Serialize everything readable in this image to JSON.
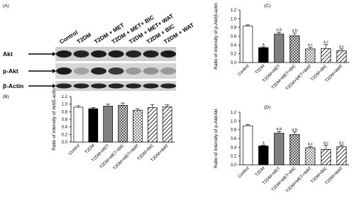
{
  "panel_a": {
    "label": "(A)",
    "lanes": [
      "Control",
      "T2DM",
      "T2DM + MET",
      "T2DM + MET+ BIC",
      "T2DM + MET+ WAT",
      "T2DM + BIC",
      "T2DM + WAT"
    ],
    "rows": [
      "Akt",
      "p-Akt",
      "β-Actin"
    ]
  },
  "chart_data": [
    {
      "type": "bar",
      "label": "(B)",
      "y_label": "Ratio of intensity of Akt/β-actin",
      "categories": [
        "Control",
        "T2DM",
        "T2DM+MET",
        "T2DM+MET+BIC",
        "T2DM+MET+WAT",
        "T2DM+BIC",
        "T2DM+WAT"
      ],
      "values": [
        0.92,
        0.88,
        0.95,
        0.97,
        0.84,
        0.91,
        0.93
      ],
      "errors": [
        0.04,
        0.03,
        0.05,
        0.06,
        0.04,
        0.08,
        0.05
      ],
      "fills": [
        "#ffffff",
        "#000000",
        "#808080",
        "checker",
        "checker-light",
        "hatch",
        "hatch"
      ],
      "ylim": [
        0,
        1.2
      ],
      "yticks": [
        {
          "value": 0,
          "label": "0.0"
        },
        0.2,
        0.4,
        0.6,
        0.8,
        {
          "value": 1,
          "label": "1.0"
        },
        1.2
      ]
    },
    {
      "type": "bar",
      "label": "(C)",
      "y_label": "Ratio of intensity of p-Akt/β-actin",
      "categories": [
        "Control",
        "T2DM",
        "T2DM+MET",
        "T2DM+MET+BIC",
        "T2DM+MET+WAT",
        "T2DM+BIC",
        "T2DM+WAT"
      ],
      "values": [
        0.83,
        0.34,
        0.65,
        0.61,
        0.31,
        0.32,
        0.27
      ],
      "errors": [
        0.03,
        0.02,
        0.04,
        0.06,
        0.04,
        0.09,
        0.04
      ],
      "annotations": [
        null,
        "a",
        "a,b",
        "a,b",
        "a,c",
        "a,c",
        "a,c"
      ],
      "fills": [
        "#ffffff",
        "#000000",
        "#808080",
        "checker",
        "checker-light",
        "hatch",
        "hatch"
      ],
      "ylim": [
        0,
        1.2
      ],
      "yticks": [
        {
          "value": 0,
          "label": "0.0"
        },
        0.2,
        0.4,
        0.6,
        0.8,
        {
          "value": 1,
          "label": "1.0"
        },
        1.2
      ]
    },
    {
      "type": "bar",
      "label": "(D)",
      "y_label": "Ratio of intensity of p-Akt/Akt",
      "categories": [
        "Control",
        "T2DM",
        "T2DM+MET",
        "T2DM+MET+BIC",
        "T2DM+MET+WAT",
        "T2DM+BIC",
        "T2DM+WAT"
      ],
      "values": [
        0.89,
        0.43,
        0.72,
        0.69,
        0.39,
        0.35,
        0.41
      ],
      "errors": [
        0.03,
        0.02,
        0.04,
        0.06,
        0.03,
        0.1,
        0.04
      ],
      "annotations": [
        null,
        "a",
        "a,b",
        "a,b",
        "a,c",
        "a,c",
        "a,c"
      ],
      "fills": [
        "#ffffff",
        "#000000",
        "#808080",
        "checker",
        "checker-light",
        "hatch",
        "hatch"
      ],
      "ylim": [
        0,
        1.2
      ],
      "yticks": [
        {
          "value": 0,
          "label": "0.0"
        },
        0.2,
        0.4,
        0.6,
        0.8,
        {
          "value": 1,
          "label": "1.0"
        },
        1.2
      ]
    }
  ]
}
